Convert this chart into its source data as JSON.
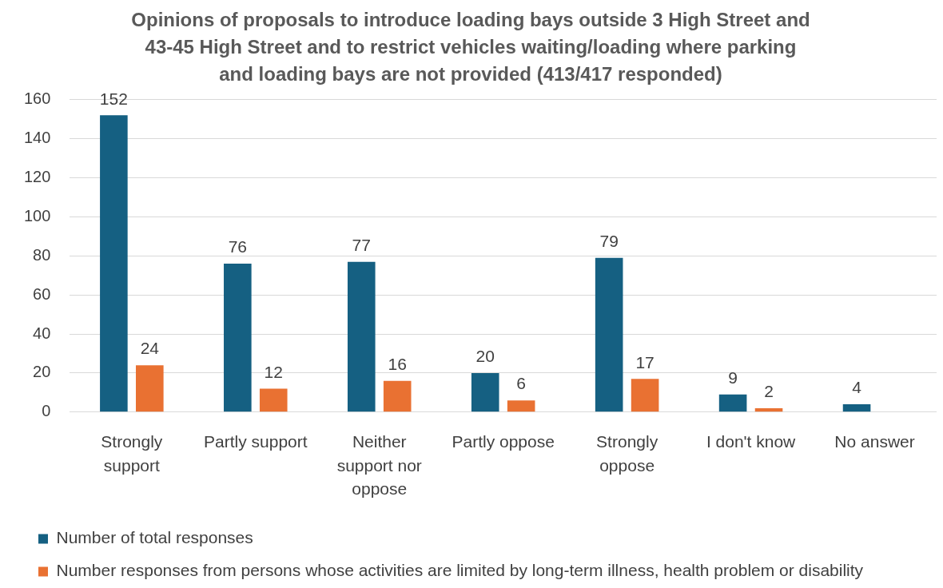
{
  "chart_data": {
    "type": "bar",
    "title": "Opinions of proposals to introduce loading bays outside 3 High Street and 43-45 High Street and to restrict vehicles waiting/loading where parking and loading bays are not provided (413/417 responded)",
    "categories": [
      "Strongly support",
      "Partly support",
      "Neither support nor oppose",
      "Partly oppose",
      "Strongly oppose",
      "I don't know",
      "No answer"
    ],
    "series": [
      {
        "name": "Number of total responses",
        "color": "#156082",
        "values": [
          152,
          76,
          77,
          20,
          79,
          9,
          4
        ]
      },
      {
        "name": "Number responses from persons whose activities are limited by long-term illness, health problem or disability",
        "color": "#e97132",
        "values": [
          24,
          12,
          16,
          6,
          17,
          2,
          null
        ]
      }
    ],
    "ylim": [
      0,
      160
    ],
    "yticks": [
      0,
      20,
      40,
      60,
      80,
      100,
      120,
      140,
      160
    ],
    "grid": "y",
    "legend": "bottom left",
    "data_labels": true
  }
}
